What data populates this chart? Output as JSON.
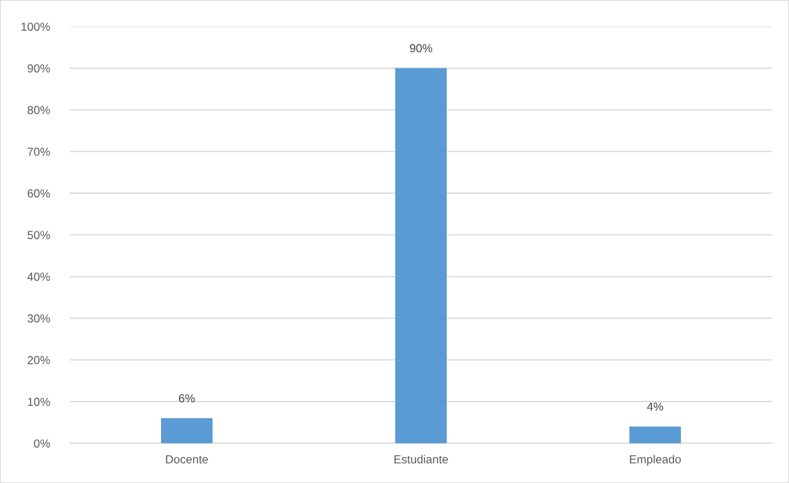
{
  "chart_data": {
    "type": "bar",
    "categories": [
      "Docente",
      "Estudiante",
      "Empleado"
    ],
    "values": [
      6,
      90,
      4
    ],
    "color": "#5b9bd5",
    "value_labels": [
      "6%",
      "90%",
      "4%"
    ],
    "ylim": [
      0,
      100
    ],
    "yticks": [
      {
        "value": 0,
        "label": "0%"
      },
      {
        "value": 10,
        "label": "10%"
      },
      {
        "value": 20,
        "label": "20%"
      },
      {
        "value": 30,
        "label": "30%"
      },
      {
        "value": 40,
        "label": "40%"
      },
      {
        "value": 50,
        "label": "50%"
      },
      {
        "value": 60,
        "label": "60%"
      },
      {
        "value": 70,
        "label": "70%"
      },
      {
        "value": 80,
        "label": "80%"
      },
      {
        "value": 90,
        "label": "90%"
      },
      {
        "value": 100,
        "label": "100%"
      }
    ],
    "grid": "y"
  }
}
